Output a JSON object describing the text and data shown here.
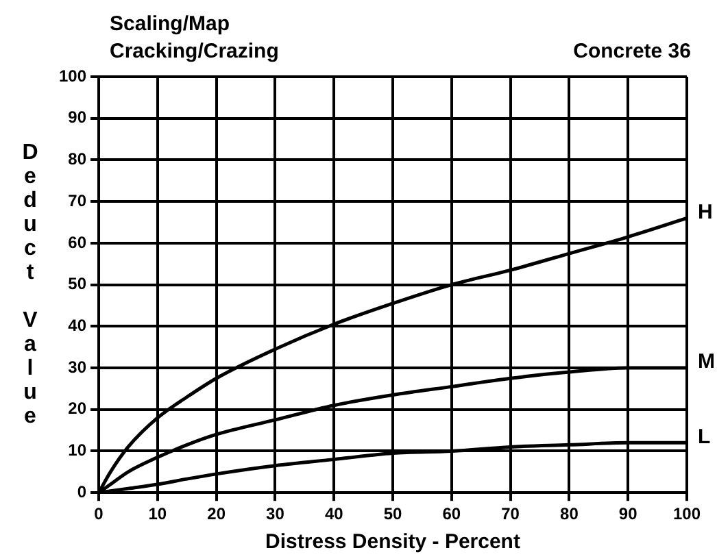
{
  "chart_data": {
    "type": "line",
    "title": "Scaling/Map\nCracking/Crazing",
    "subtitle": "Concrete 36",
    "xlabel": "Distress Density - Percent",
    "ylabel": "Deduct Value",
    "x": [
      0,
      2,
      5,
      10,
      15,
      20,
      30,
      40,
      50,
      60,
      70,
      80,
      90,
      100
    ],
    "series": [
      {
        "name": "H",
        "color": "#000000",
        "values": [
          0,
          5,
          11,
          18,
          23,
          27.5,
          34.5,
          40.5,
          45.5,
          50,
          53.5,
          57.5,
          61.5,
          66
        ]
      },
      {
        "name": "M",
        "color": "#000000",
        "values": [
          0,
          2,
          5,
          8.5,
          11.5,
          14,
          17.5,
          21,
          23.5,
          25.5,
          27.5,
          29,
          30,
          30
        ]
      },
      {
        "name": "L",
        "color": "#000000",
        "values": [
          0,
          0.4,
          1,
          2,
          3.3,
          4.5,
          6.5,
          8,
          9.5,
          10,
          11,
          11.5,
          12,
          12
        ]
      }
    ],
    "xlim": [
      0,
      100
    ],
    "xticks": [
      0,
      10,
      20,
      30,
      40,
      50,
      60,
      70,
      80,
      90,
      100
    ],
    "ylim": [
      0,
      100
    ],
    "yticks": [
      0,
      10,
      20,
      30,
      40,
      50,
      60,
      70,
      80,
      90,
      100
    ],
    "grid": true,
    "legend": false,
    "marker": "none",
    "line_style": "solid"
  }
}
